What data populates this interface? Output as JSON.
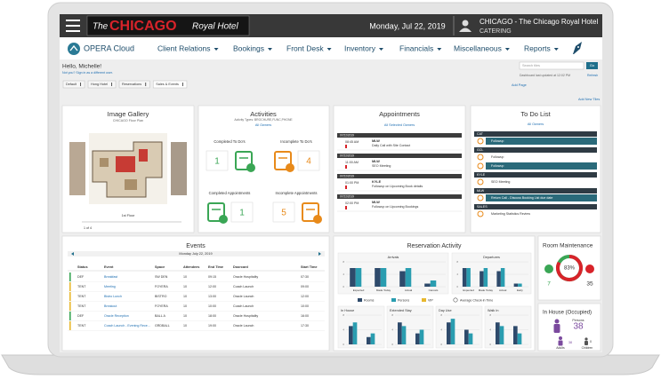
{
  "header": {
    "logo_pre": "The",
    "logo_name": "CHICAGO",
    "logo_post": "Royal Hotel",
    "date": "Monday, Jul 22, 2019",
    "property": "CHICAGO - The Chicago Royal Hotel",
    "role": "CATERING"
  },
  "nav": {
    "brand": "OPERA Cloud",
    "menus": [
      "Client Relations",
      "Bookings",
      "Front Desk",
      "Inventory",
      "Financials",
      "Miscellaneous",
      "Reports"
    ]
  },
  "greeting": {
    "hello": "Hello, Michelle!",
    "not_you": "Not you? Sign in as a different user."
  },
  "tabs": [
    "Default",
    "Hong Hotel",
    "Reservations",
    "Sales & Events"
  ],
  "toolbar": {
    "search_placeholder": "Search tiles",
    "go": "Go",
    "updated": "Dashboard last updated at 12:02 PM",
    "refresh": "Refresh",
    "add_page": "Add Page",
    "add_tiles": "Add New Tiles"
  },
  "image_gallery": {
    "title": "Image Gallery",
    "subtitle": "CHICAGO Floor Plan",
    "caption": "1st Floor",
    "pager": "1 of 4"
  },
  "activities": {
    "title": "Activities",
    "subtitle": "Activity Types: BROCHURE,FUNC,PHONE",
    "owner": "All Owners",
    "items": [
      {
        "label": "Completed To Do's",
        "count": 1
      },
      {
        "label": "Incomplete To Do's",
        "count": 4
      },
      {
        "label": "Completed Appointments",
        "count": 1
      },
      {
        "label": "Incomplete Appointments",
        "count": 5
      }
    ]
  },
  "appointments": {
    "title": "Appointments",
    "owner": "All Selected Owners",
    "items": [
      {
        "date": "07/22/2019",
        "time": "08:45 AM",
        "owner": "MLW",
        "text": "Daily Call with Site Contact"
      },
      {
        "date": "07/22/2019",
        "time": "11:00 AM",
        "owner": "MLW",
        "text": "SEO Meeting"
      },
      {
        "date": "07/22/2019",
        "time": "01:00 PM",
        "owner": "KYLE",
        "text": "Followup on Upcoming Book details"
      },
      {
        "date": "07/22/2019",
        "time": "02:00 PM",
        "owner": "MLW",
        "text": "Followup on Upcoming Bookings"
      }
    ]
  },
  "todo": {
    "title": "To Do List",
    "owner": "All Owners",
    "groups": [
      {
        "name": "CAT",
        "items": [
          "Followup"
        ]
      },
      {
        "name": "GCL",
        "items": [
          "Followup",
          "Followup"
        ]
      },
      {
        "name": "KYLE",
        "items": [
          "SEO Meeting"
        ]
      },
      {
        "name": "MLW",
        "items": [
          "Return Call - Discuss Booking List due date"
        ]
      },
      {
        "name": "SALES",
        "items": [
          "Marketing Statistics Review"
        ]
      }
    ]
  },
  "events": {
    "title": "Events",
    "date": "Monday July 22, 2019",
    "columns": [
      "Status",
      "Event",
      "Space",
      "Attendees",
      "End Time",
      "Doorcard",
      "Start Time"
    ],
    "rows": [
      [
        "DEF",
        "Breakfast",
        "SW DEN",
        "10",
        "09:15",
        "Oracle Hospitality",
        "07:30"
      ],
      [
        "TENT",
        "Meeting",
        "FOYERA",
        "10",
        "12:00",
        "Coach Launch",
        "09:00"
      ],
      [
        "TENT",
        "Bistro Lunch",
        "BISTRO",
        "10",
        "13:00",
        "Oracle Launch",
        "12:00"
      ],
      [
        "TENT",
        "Breakout",
        "FOYERA",
        "10",
        "10:00",
        "Coach Launch",
        "10:00"
      ],
      [
        "DEF",
        "Oracle Reception",
        "BALL A",
        "10",
        "18:00",
        "Oracle Hospitality",
        "16:00"
      ],
      [
        "TENT",
        "Coach Launch - Evening Rece...",
        "GRDBALL",
        "10",
        "19:00",
        "Oracle Launch",
        "17:30"
      ]
    ]
  },
  "reservation_activity": {
    "title": "Reservation Activity",
    "checkin_label": "Average Check-in Time",
    "series": [
      {
        "name": "Rooms",
        "color": "#2e4a6b"
      },
      {
        "name": "Persons",
        "color": "#2a9db0"
      },
      {
        "name": "VIP",
        "color": "#e8b82e"
      }
    ],
    "charts": [
      {
        "title": "Arrivals",
        "categories": [
          "Expected",
          "Made Today",
          "Actual",
          "Cancels"
        ],
        "values": [
          [
            6,
            6,
            5,
            1
          ],
          [
            6,
            6,
            6,
            2
          ],
          [
            0,
            0,
            0,
            0
          ]
        ],
        "ylim": [
          0,
          8
        ],
        "yticks": [
          0,
          4,
          8
        ]
      },
      {
        "title": "Departures",
        "categories": [
          "Expected",
          "Made Today",
          "Actual",
          "Early"
        ],
        "values": [
          [
            6,
            5,
            5,
            1
          ],
          [
            6,
            6,
            6,
            1
          ],
          [
            0,
            0,
            0,
            0
          ]
        ],
        "ylim": [
          0,
          8
        ],
        "yticks": [
          0,
          4,
          8
        ]
      },
      {
        "title": "In House",
        "values": [
          [
            5,
            2
          ],
          [
            6,
            3
          ],
          [
            0,
            0
          ]
        ],
        "ylim": [
          0,
          8
        ],
        "yticks": [
          0,
          4,
          8
        ]
      },
      {
        "title": "Extended Stay",
        "values": [
          [
            6,
            3
          ],
          [
            5,
            4
          ],
          [
            0,
            0
          ]
        ],
        "ylim": [
          0,
          8
        ],
        "yticks": [
          0,
          4,
          8
        ]
      },
      {
        "title": "Day Use",
        "values": [
          [
            6,
            4
          ],
          [
            7,
            3
          ],
          [
            0,
            0
          ]
        ],
        "ylim": [
          0,
          8
        ],
        "yticks": [
          0,
          4,
          8
        ]
      },
      {
        "title": "Walk In",
        "values": [
          [
            6,
            5
          ],
          [
            5,
            3
          ],
          [
            0,
            0
          ]
        ],
        "ylim": [
          0,
          8
        ],
        "yticks": [
          0,
          4,
          8
        ]
      }
    ]
  },
  "room_maintenance": {
    "title": "Room Maintenance",
    "percent": {
      "value": 83,
      "label": "83%"
    },
    "left": 7,
    "right": 35
  },
  "in_house": {
    "title": "In House (Occupied)",
    "persons": 38,
    "persons_label": "Persons",
    "adults": 38,
    "adults_label": "Adults",
    "children": 0,
    "children_label": "Children"
  }
}
